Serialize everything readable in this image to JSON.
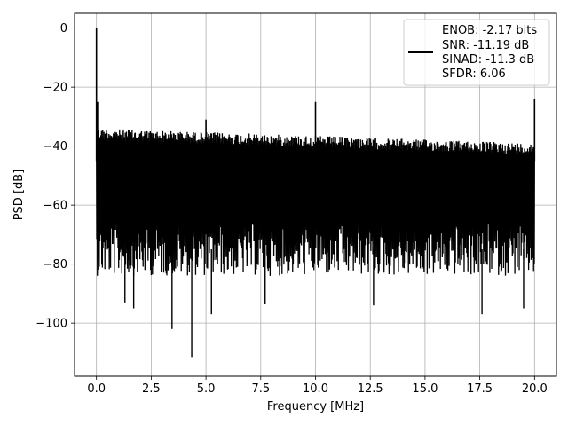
{
  "chart_data": {
    "type": "line",
    "xlabel": "Frequency [MHz]",
    "ylabel": "PSD [dB]",
    "xlim": [
      -1.0,
      21.0
    ],
    "ylim": [
      -118,
      5
    ],
    "x_ticks": [
      0.0,
      2.5,
      5.0,
      7.5,
      10.0,
      12.5,
      15.0,
      17.5,
      20.0
    ],
    "x_tick_labels": [
      "0.0",
      "2.5",
      "5.0",
      "7.5",
      "10.0",
      "12.5",
      "15.0",
      "17.5",
      "20.0"
    ],
    "y_ticks": [
      0,
      -20,
      -40,
      -60,
      -80,
      -100
    ],
    "y_tick_labels": [
      "0",
      "−20",
      "−40",
      "−60",
      "−80",
      "−100"
    ],
    "grid": true,
    "legend_placement": "top-right",
    "legend_lines": [
      "ENOB: -2.17 bits",
      "SNR: -11.19 dB",
      "SINAD: -11.3 dB",
      "SFDR: 6.06"
    ],
    "series": [
      {
        "color": "#000000",
        "noise_band_db": [
          -80,
          -35
        ],
        "spikes": [
          {
            "x": 0.0,
            "y": 0.0
          },
          {
            "x": 0.05,
            "y": -25.0
          },
          {
            "x": 5.0,
            "y": -31.0
          },
          {
            "x": 10.0,
            "y": -25.0
          },
          {
            "x": 20.0,
            "y": -24.0
          }
        ],
        "minima": [
          {
            "x": 1.3,
            "y": -93.0
          },
          {
            "x": 1.7,
            "y": -95.0
          },
          {
            "x": 3.45,
            "y": -102.0
          },
          {
            "x": 4.35,
            "y": -111.5
          },
          {
            "x": 5.25,
            "y": -97.0
          },
          {
            "x": 7.7,
            "y": -93.5
          },
          {
            "x": 12.65,
            "y": -94.0
          },
          {
            "x": 17.6,
            "y": -97.0
          },
          {
            "x": 19.5,
            "y": -95.0
          }
        ]
      }
    ]
  }
}
